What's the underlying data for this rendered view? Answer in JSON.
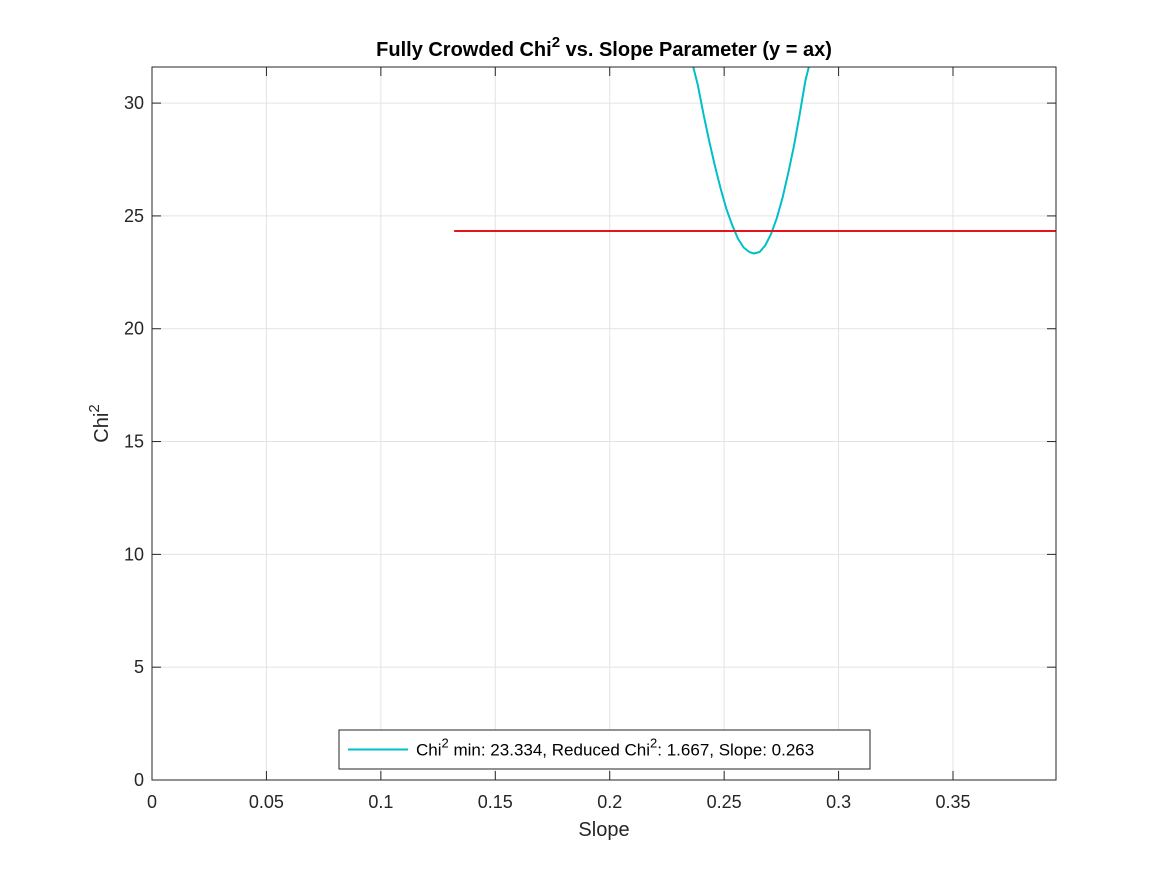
{
  "chart_data": {
    "type": "line",
    "title": {
      "pre": "Fully Crowded Chi",
      "sup": "2",
      "post": " vs. Slope Parameter (y = ax)"
    },
    "xlabel": "Slope",
    "ylabel": {
      "main": "Chi",
      "sup": "2"
    },
    "xlim": [
      0,
      0.395
    ],
    "ylim": [
      0,
      31.6
    ],
    "xticks": [
      0,
      0.05,
      0.1,
      0.15,
      0.2,
      0.25,
      0.3,
      0.35
    ],
    "xtick_labels": [
      "0",
      "0.05",
      "0.1",
      "0.15",
      "0.2",
      "0.25",
      "0.3",
      "0.35"
    ],
    "yticks": [
      0,
      5,
      10,
      15,
      20,
      25,
      30
    ],
    "ytick_labels": [
      "0",
      "5",
      "10",
      "15",
      "20",
      "25",
      "30"
    ],
    "grid": true,
    "legend_position": "bottom-center",
    "series": [
      {
        "type": "line",
        "color": "#00BFC8",
        "x": [
          0.236,
          0.2385,
          0.241,
          0.2435,
          0.246,
          0.2485,
          0.251,
          0.2535,
          0.256,
          0.2585,
          0.261,
          0.263,
          0.2655,
          0.268,
          0.2705,
          0.273,
          0.2755,
          0.278,
          0.2805,
          0.283,
          0.2855,
          0.288
        ],
        "y": [
          31.8,
          30.8,
          29.5,
          28.3,
          27.2,
          26.2,
          25.3,
          24.6,
          24.0,
          23.6,
          23.4,
          23.334,
          23.4,
          23.7,
          24.2,
          24.9,
          25.8,
          26.9,
          28.1,
          29.5,
          31.0,
          32.0
        ]
      },
      {
        "type": "line",
        "color": "#E8141C",
        "x": [
          0.132,
          0.395
        ],
        "y": [
          24.33,
          24.33
        ]
      }
    ],
    "legend": [
      {
        "series_index": 0,
        "color": "#00BFC8",
        "parts": [
          {
            "text": "Chi"
          },
          {
            "text": "2",
            "sup": true
          },
          {
            "text": " min: 23.334, Reduced Chi"
          },
          {
            "text": "2",
            "sup": true
          },
          {
            "text": ": 1.667, Slope: 0.263"
          }
        ]
      }
    ]
  }
}
